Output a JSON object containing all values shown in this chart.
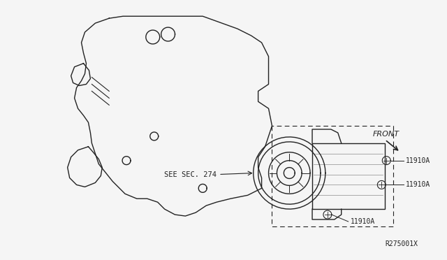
{
  "bg_color": "#f5f5f5",
  "line_color": "#222222",
  "title": "",
  "diagram_ref": "R275001X",
  "front_label": "FRONT",
  "see_sec_label": "SEE SEC. 274",
  "part_label": "11910A",
  "fig_size": [
    6.4,
    3.72
  ],
  "dpi": 100
}
